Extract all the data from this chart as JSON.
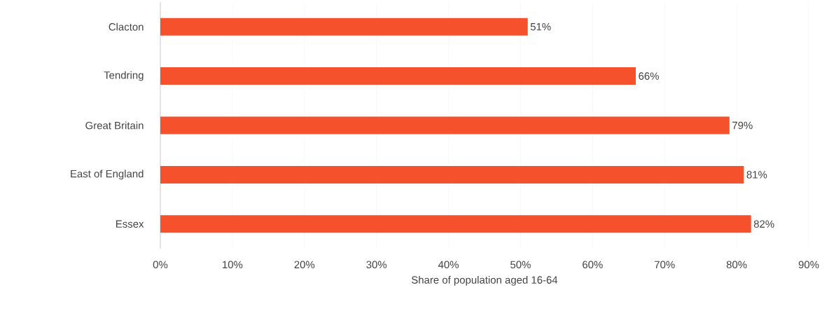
{
  "chart_data": {
    "type": "bar",
    "orientation": "horizontal",
    "categories": [
      "Clacton",
      "Tendring",
      "Great Britain",
      "East of England",
      "Essex"
    ],
    "values": [
      51,
      66,
      79,
      81,
      82
    ],
    "value_labels": [
      "51%",
      "66%",
      "79%",
      "81%",
      "82%"
    ],
    "color": "#f4512c",
    "xlabel": "Share of population aged 16-64",
    "xlim": [
      0,
      90
    ],
    "xticks": [
      {
        "value": 0,
        "label": "0%"
      },
      {
        "value": 10,
        "label": "10%"
      },
      {
        "value": 20,
        "label": "20%"
      },
      {
        "value": 30,
        "label": "30%"
      },
      {
        "value": 40,
        "label": "40%"
      },
      {
        "value": 50,
        "label": "50%"
      },
      {
        "value": 60,
        "label": "60%"
      },
      {
        "value": 70,
        "label": "70%"
      },
      {
        "value": 80,
        "label": "80%"
      },
      {
        "value": 90,
        "label": "90%"
      }
    ],
    "grid": "x"
  }
}
